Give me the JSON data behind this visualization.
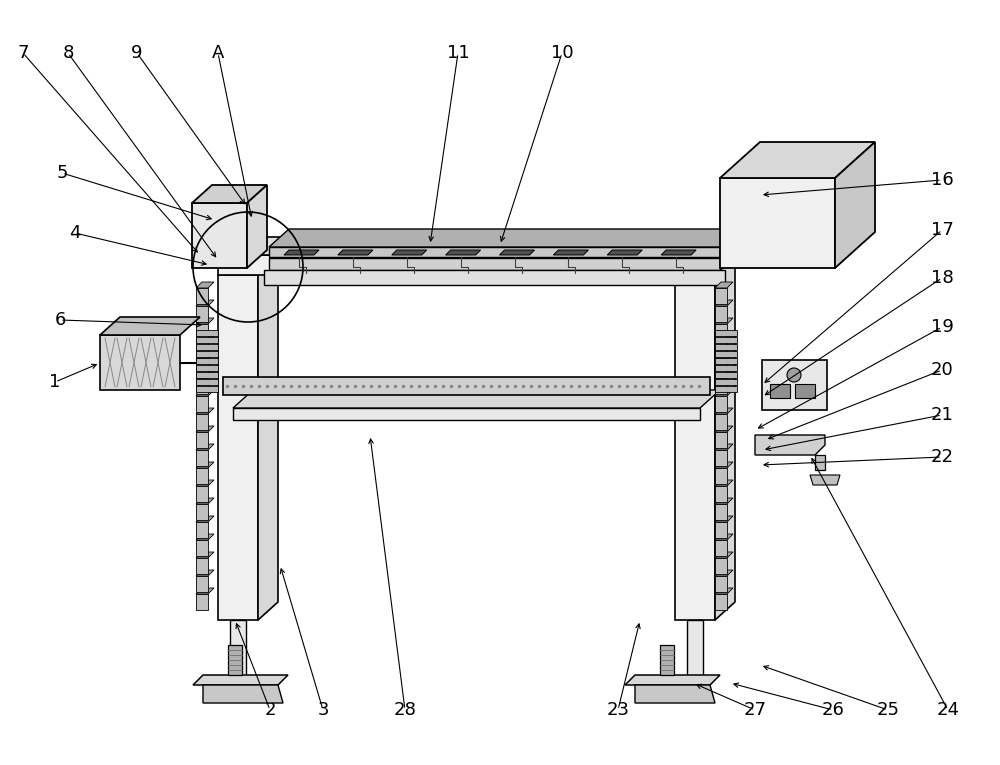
{
  "bg_color": "#ffffff",
  "lc": "#000000",
  "figsize": [
    10.0,
    7.65
  ],
  "dpi": 100,
  "fs": 13
}
